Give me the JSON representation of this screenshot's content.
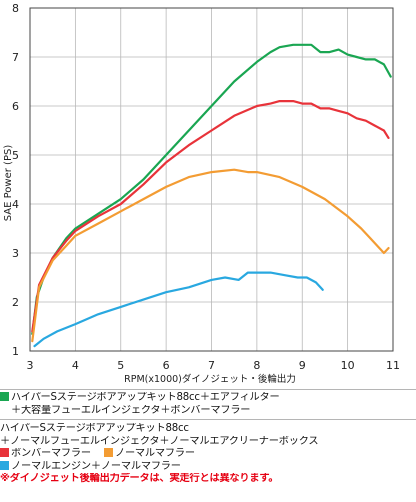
{
  "chart_data": {
    "type": "line",
    "ylabel": "SAE Power (PS)",
    "xlabel": "RPM(x1000)ダイノジェット・後輪出力",
    "xlim": [
      3,
      11
    ],
    "ylim": [
      1,
      8
    ],
    "xticks": [
      3,
      4,
      5,
      6,
      7,
      8,
      9,
      10,
      11
    ],
    "yticks": [
      1,
      2,
      3,
      4,
      5,
      6,
      7,
      8
    ],
    "grid": true,
    "series": [
      {
        "key": "green",
        "color": "#1aa652",
        "x": [
          3.05,
          3.15,
          3.3,
          3.5,
          3.8,
          4.0,
          4.5,
          5.0,
          5.5,
          6.0,
          6.5,
          7.0,
          7.5,
          8.0,
          8.3,
          8.5,
          8.8,
          9.0,
          9.2,
          9.4,
          9.6,
          9.8,
          10.0,
          10.2,
          10.4,
          10.6,
          10.8,
          10.95
        ],
        "y": [
          1.35,
          2.1,
          2.5,
          2.9,
          3.3,
          3.5,
          3.8,
          4.1,
          4.5,
          5.0,
          5.5,
          6.0,
          6.5,
          6.9,
          7.1,
          7.2,
          7.25,
          7.25,
          7.25,
          7.1,
          7.1,
          7.15,
          7.05,
          7.0,
          6.95,
          6.95,
          6.85,
          6.6
        ]
      },
      {
        "key": "red",
        "color": "#e8333a",
        "x": [
          3.05,
          3.2,
          3.5,
          3.8,
          4.0,
          4.5,
          5.0,
          5.5,
          6.0,
          6.5,
          7.0,
          7.5,
          8.0,
          8.3,
          8.5,
          8.8,
          9.0,
          9.2,
          9.4,
          9.6,
          9.8,
          10.0,
          10.2,
          10.4,
          10.6,
          10.8,
          10.9
        ],
        "y": [
          1.4,
          2.35,
          2.9,
          3.25,
          3.45,
          3.75,
          4.0,
          4.4,
          4.85,
          5.2,
          5.5,
          5.8,
          6.0,
          6.05,
          6.1,
          6.1,
          6.05,
          6.05,
          5.95,
          5.95,
          5.9,
          5.85,
          5.75,
          5.7,
          5.6,
          5.5,
          5.35
        ]
      },
      {
        "key": "orange",
        "color": "#f39c33",
        "x": [
          3.05,
          3.2,
          3.5,
          3.8,
          4.0,
          4.5,
          5.0,
          5.5,
          6.0,
          6.5,
          7.0,
          7.5,
          7.8,
          8.0,
          8.5,
          9.0,
          9.5,
          10.0,
          10.3,
          10.5,
          10.7,
          10.8,
          10.9
        ],
        "y": [
          1.2,
          2.3,
          2.85,
          3.15,
          3.35,
          3.6,
          3.85,
          4.1,
          4.35,
          4.55,
          4.65,
          4.7,
          4.65,
          4.65,
          4.55,
          4.35,
          4.1,
          3.75,
          3.5,
          3.3,
          3.1,
          3.0,
          3.1
        ]
      },
      {
        "key": "blue",
        "color": "#29a8e0",
        "x": [
          3.1,
          3.3,
          3.6,
          4.0,
          4.5,
          5.0,
          5.5,
          6.0,
          6.5,
          7.0,
          7.3,
          7.6,
          7.8,
          8.0,
          8.3,
          8.6,
          8.9,
          9.1,
          9.3,
          9.45
        ],
        "y": [
          1.1,
          1.25,
          1.4,
          1.55,
          1.75,
          1.9,
          2.05,
          2.2,
          2.3,
          2.45,
          2.5,
          2.45,
          2.6,
          2.6,
          2.6,
          2.55,
          2.5,
          2.5,
          2.4,
          2.25
        ]
      }
    ]
  },
  "legend": {
    "line1": "ハイパーSステージボアアップキット88cc＋エアフィルター",
    "line2": "＋大容量フューエルインジェクタ＋ボンバーマフラー",
    "line3": "ハイパーSステージボアアップキット88cc",
    "line4": "＋ノーマルフューエルインジェクタ＋ノーマルエアクリーナーボックス",
    "red_label": "ボンバーマフラー",
    "orange_label": "ノーマルマフラー",
    "blue_label": "ノーマルエンジン＋ノーマルマフラー",
    "note": "※ダイノジェット後輪出力データは、実走行とは異なります。"
  }
}
